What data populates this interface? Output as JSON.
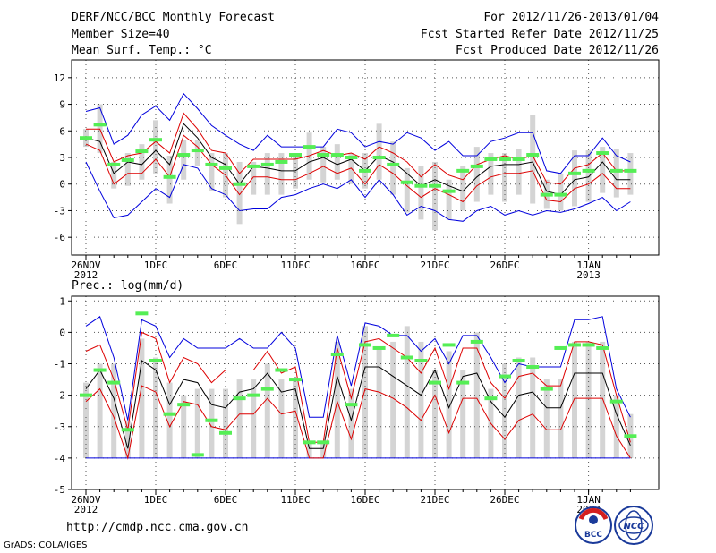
{
  "header": {
    "title": "DERF/NCC/BCC Monthly Forecast",
    "member_size": "Member Size=40",
    "variable": "Mean Surf. Temp.: °C",
    "forecast_range": "For 2012/11/26-2013/01/04",
    "start_date": "Fcst Started Refer Date 2012/11/25",
    "produced_date": "Fcst Produced Date 2012/11/26"
  },
  "footer": {
    "url": "http://cmdp.ncc.cma.gov.cn",
    "credit": "GrADS: COLA/IGES"
  },
  "logos": {
    "bcc": "BCC",
    "ncc": "NCC"
  },
  "colors": {
    "max": "#0000dd",
    "quartile": "#dd0000",
    "median": "#000000",
    "obs": "#55ee55",
    "box": "#d4d4d4",
    "grid": "#555555"
  },
  "chart_data": [
    {
      "type": "box-line",
      "title": "Mean Surf. Temp.: °C",
      "days": 40,
      "ylim": [
        -8,
        14
      ],
      "yticks": [
        -6,
        -3,
        0,
        3,
        6,
        9,
        12
      ],
      "xtick_labels": [
        {
          "day": 0,
          "label": "26NOV",
          "sub": "2012"
        },
        {
          "day": 5,
          "label": "1DEC"
        },
        {
          "day": 10,
          "label": "6DEC"
        },
        {
          "day": 15,
          "label": "11DEC"
        },
        {
          "day": 20,
          "label": "16DEC"
        },
        {
          "day": 25,
          "label": "21DEC"
        },
        {
          "day": 30,
          "label": "26DEC"
        },
        {
          "day": 36,
          "label": "1JAN",
          "sub": "2013"
        }
      ],
      "series": [
        {
          "name": "max",
          "values": [
            8.2,
            8.6,
            4.5,
            5.5,
            7.8,
            8.8,
            7.2,
            10.2,
            8.5,
            6.6,
            5.5,
            4.5,
            3.8,
            5.5,
            4.2,
            4.2,
            4.2,
            4.2,
            6.2,
            5.8,
            4.2,
            4.8,
            4.5,
            5.8,
            5.2,
            3.8,
            4.8,
            3.2,
            3.2,
            4.8,
            5.2,
            5.8,
            5.8,
            1.5,
            1.2,
            3.2,
            3.2,
            5.2,
            3.2,
            2.5
          ]
        },
        {
          "name": "q75",
          "values": [
            6.2,
            6.2,
            2.5,
            3.2,
            3.5,
            4.8,
            3.5,
            8.0,
            6.2,
            3.8,
            3.5,
            1.2,
            2.8,
            2.8,
            2.8,
            2.8,
            3.2,
            3.8,
            3.2,
            3.5,
            2.8,
            4.2,
            3.5,
            2.5,
            0.8,
            2.2,
            1.0,
            0.5,
            2.2,
            2.8,
            3.2,
            2.8,
            3.2,
            0.2,
            0.0,
            1.8,
            2.2,
            3.5,
            1.5,
            1.5
          ]
        },
        {
          "name": "median",
          "values": [
            5.2,
            4.8,
            1.2,
            2.5,
            2.2,
            3.8,
            2.2,
            6.8,
            5.2,
            3.0,
            2.2,
            0.0,
            2.0,
            1.8,
            1.5,
            1.5,
            2.5,
            3.0,
            2.2,
            2.8,
            1.5,
            3.2,
            2.5,
            1.2,
            -0.2,
            0.5,
            -0.2,
            -0.8,
            0.8,
            2.0,
            2.2,
            2.2,
            2.5,
            -0.8,
            -1.2,
            0.5,
            0.8,
            2.5,
            0.5,
            0.5
          ]
        },
        {
          "name": "q25",
          "values": [
            4.5,
            3.8,
            0.0,
            1.2,
            1.2,
            2.8,
            0.8,
            5.5,
            4.2,
            2.2,
            1.0,
            -1.2,
            0.8,
            0.8,
            0.5,
            0.5,
            1.2,
            2.0,
            1.2,
            1.8,
            0.0,
            2.2,
            1.2,
            -0.2,
            -1.5,
            -0.5,
            -1.2,
            -2.0,
            -0.2,
            0.8,
            1.2,
            1.2,
            1.5,
            -1.8,
            -2.0,
            -0.5,
            0.0,
            1.2,
            -0.5,
            -0.5
          ]
        },
        {
          "name": "min",
          "values": [
            2.5,
            -0.8,
            -3.8,
            -3.5,
            -2.0,
            -0.5,
            -1.5,
            2.2,
            1.8,
            -0.5,
            -1.2,
            -3.0,
            -2.8,
            -2.8,
            -1.5,
            -1.2,
            -0.5,
            0.0,
            -0.5,
            0.5,
            -1.5,
            0.5,
            -1.2,
            -3.5,
            -2.5,
            -3.0,
            -4.0,
            -4.2,
            -3.0,
            -2.5,
            -3.5,
            -3.0,
            -3.5,
            -3.0,
            -3.2,
            -2.8,
            -2.2,
            -1.5,
            -3.0,
            -2.0
          ]
        },
        {
          "name": "observed",
          "values": [
            5.2,
            6.7,
            2.2,
            2.7,
            3.7,
            5.0,
            0.8,
            3.3,
            3.8,
            2.2,
            1.8,
            0.0,
            2.0,
            2.2,
            2.5,
            3.3,
            4.2,
            3.3,
            3.3,
            3.0,
            1.5,
            3.0,
            2.2,
            0.2,
            -0.2,
            -0.2,
            -0.8,
            1.5,
            2.0,
            2.8,
            2.8,
            2.8,
            3.3,
            -1.2,
            -1.2,
            1.2,
            1.5,
            3.5,
            1.5,
            1.5
          ]
        },
        {
          "name": "box_high",
          "values": [
            6.2,
            9.0,
            2.5,
            3.5,
            4.5,
            7.2,
            3.2,
            5.0,
            5.0,
            3.5,
            3.5,
            2.5,
            2.5,
            3.5,
            3.5,
            3.5,
            5.8,
            4.2,
            4.5,
            3.5,
            3.5,
            6.8,
            4.8,
            1.8,
            2.0,
            2.5,
            0.5,
            2.0,
            4.2,
            3.5,
            3.5,
            4.0,
            7.8,
            0.5,
            1.2,
            3.8,
            3.8,
            4.2,
            4.0,
            3.5
          ]
        },
        {
          "name": "box_low",
          "values": [
            4.2,
            3.5,
            -0.5,
            -0.2,
            0.5,
            1.2,
            -2.2,
            0.5,
            2.0,
            -0.8,
            -1.5,
            -4.5,
            -1.2,
            -1.2,
            -1.2,
            -0.5,
            0.5,
            0.2,
            0.5,
            0.0,
            -0.5,
            0.5,
            -1.2,
            -3.2,
            -4.0,
            -5.2,
            -4.0,
            -3.0,
            -2.0,
            -1.2,
            -2.0,
            -1.2,
            -2.2,
            -2.8,
            -3.0,
            -2.5,
            -2.0,
            -1.0,
            -1.5,
            -1.2
          ]
        }
      ]
    },
    {
      "type": "box-line",
      "title": "Prec.: log(mm/d)",
      "days": 40,
      "ylim": [
        -5,
        1.15
      ],
      "yticks": [
        -5,
        -4,
        -3,
        -2,
        -1,
        0,
        1
      ],
      "xtick_labels": [
        {
          "day": 0,
          "label": "26NOV",
          "sub": "2012"
        },
        {
          "day": 5,
          "label": "1DEC"
        },
        {
          "day": 10,
          "label": "6DEC"
        },
        {
          "day": 15,
          "label": "11DEC"
        },
        {
          "day": 20,
          "label": "16DEC"
        },
        {
          "day": 25,
          "label": "21DEC"
        },
        {
          "day": 30,
          "label": "26DEC"
        },
        {
          "day": 36,
          "label": "1JAN",
          "sub": "2013"
        }
      ],
      "series": [
        {
          "name": "max",
          "values": [
            0.2,
            0.5,
            -0.8,
            -2.8,
            0.4,
            0.2,
            -0.8,
            -0.2,
            -0.5,
            -0.5,
            -0.5,
            -0.2,
            -0.5,
            -0.5,
            0.0,
            -0.5,
            -2.7,
            -2.7,
            -0.1,
            -1.7,
            0.3,
            0.2,
            -0.1,
            -0.1,
            -0.6,
            -0.2,
            -1.0,
            -0.1,
            -0.1,
            -0.8,
            -1.6,
            -1.0,
            -1.1,
            -1.1,
            -1.1,
            0.4,
            0.4,
            0.5,
            -1.8,
            -2.7
          ]
        },
        {
          "name": "q75",
          "values": [
            -0.6,
            -0.4,
            -1.5,
            -3.1,
            0.0,
            -0.2,
            -1.6,
            -0.8,
            -1.0,
            -1.6,
            -1.2,
            -1.2,
            -1.2,
            -0.6,
            -1.3,
            -1.1,
            -3.5,
            -3.5,
            -0.5,
            -2.1,
            -0.3,
            -0.2,
            -0.5,
            -0.8,
            -1.3,
            -0.5,
            -1.8,
            -0.5,
            -0.5,
            -1.6,
            -2.1,
            -1.4,
            -1.3,
            -1.7,
            -1.7,
            -0.3,
            -0.3,
            -0.4,
            -2.0,
            -3.5
          ]
        },
        {
          "name": "median",
          "values": [
            -1.8,
            -1.2,
            -2.1,
            -3.7,
            -0.9,
            -1.2,
            -2.3,
            -1.5,
            -1.6,
            -2.3,
            -2.4,
            -1.9,
            -1.8,
            -1.3,
            -1.9,
            -1.8,
            -3.7,
            -3.7,
            -1.4,
            -2.8,
            -1.1,
            -1.1,
            -1.4,
            -1.7,
            -2.0,
            -1.2,
            -2.4,
            -1.4,
            -1.3,
            -2.2,
            -2.7,
            -2.0,
            -1.9,
            -2.4,
            -2.4,
            -1.3,
            -1.3,
            -1.3,
            -2.6,
            -3.6
          ]
        },
        {
          "name": "q25",
          "values": [
            -2.2,
            -1.8,
            -2.7,
            -4.0,
            -1.7,
            -1.9,
            -3.0,
            -2.2,
            -2.3,
            -3.0,
            -3.1,
            -2.6,
            -2.6,
            -2.1,
            -2.6,
            -2.5,
            -4.0,
            -4.0,
            -2.2,
            -3.4,
            -1.8,
            -1.9,
            -2.1,
            -2.4,
            -2.8,
            -2.0,
            -3.2,
            -2.1,
            -2.1,
            -2.9,
            -3.4,
            -2.8,
            -2.6,
            -3.1,
            -3.1,
            -2.1,
            -2.1,
            -2.1,
            -3.3,
            -4.0
          ]
        },
        {
          "name": "min",
          "values": [
            -4,
            -4,
            -4,
            -4,
            -4,
            -4,
            -4,
            -4,
            -4,
            -4,
            -4,
            -4,
            -4,
            -4,
            -4,
            -4,
            -4,
            -4,
            -4,
            -4,
            -4,
            -4,
            -4,
            -4,
            -4,
            -4,
            -4,
            -4,
            -4,
            -4,
            -4,
            -4,
            -4,
            -4,
            -4,
            -4,
            -4,
            -4,
            -4,
            -4
          ]
        },
        {
          "name": "observed",
          "values": [
            -2.0,
            -1.2,
            -1.6,
            -3.1,
            0.6,
            -0.9,
            -2.6,
            -2.3,
            -3.9,
            -2.8,
            -3.2,
            -2.1,
            -2.0,
            -1.8,
            -1.2,
            -1.5,
            -3.5,
            -3.5,
            -0.7,
            -2.3,
            -0.4,
            -0.5,
            -0.1,
            -0.8,
            -0.9,
            -1.6,
            -0.4,
            -1.6,
            -0.3,
            -2.1,
            -1.4,
            -0.9,
            -1.1,
            -1.8,
            -0.5,
            -0.4,
            -0.4,
            -0.5,
            -2.2,
            -3.3
          ]
        },
        {
          "name": "box_high",
          "values": [
            -1.6,
            -1.0,
            -1.0,
            -2.8,
            -0.2,
            -0.8,
            -1.6,
            -2.0,
            -1.8,
            -1.8,
            -1.8,
            -1.5,
            -1.5,
            -1.0,
            -1.5,
            -1.5,
            -3.5,
            -3.5,
            -0.3,
            -1.8,
            0.2,
            -0.5,
            -0.3,
            0.2,
            -0.3,
            -1.2,
            -0.6,
            -1.2,
            0.0,
            -1.8,
            -1.0,
            -0.8,
            -0.8,
            -1.5,
            -1.5,
            -0.3,
            -0.3,
            -0.3,
            -2.0,
            -2.6
          ]
        },
        {
          "name": "box_low",
          "values": [
            -4,
            -4,
            -4,
            -4,
            -4,
            -4,
            -4,
            -4,
            -4,
            -4,
            -4,
            -4,
            -4,
            -4,
            -4,
            -4,
            -4,
            -4,
            -4,
            -4,
            -4,
            -4,
            -4,
            -4,
            -4,
            -4,
            -4,
            -4,
            -4,
            -4,
            -4,
            -4,
            -4,
            -4,
            -4,
            -4,
            -4,
            -4,
            -4,
            -4
          ]
        }
      ]
    }
  ]
}
